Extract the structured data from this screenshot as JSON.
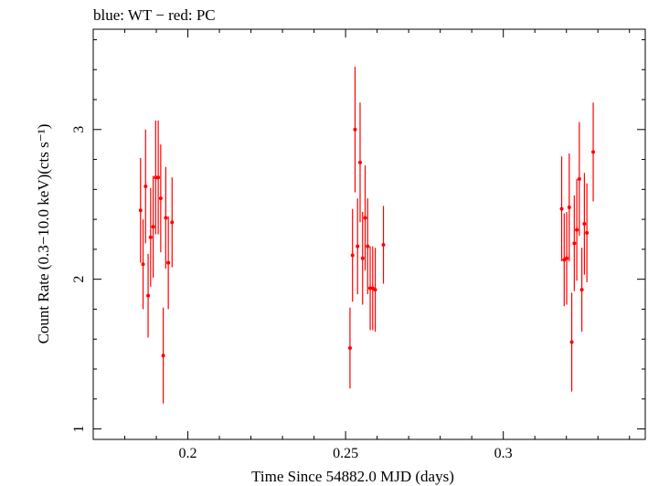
{
  "chart_data": {
    "type": "scatter",
    "title": "blue: WT − red: PC",
    "xlabel": "Time Since 54882.0 MJD (days)",
    "ylabel": "Count Rate (0.3−10.0 keV)(cts s⁻¹)",
    "xlim": [
      0.17,
      0.345
    ],
    "ylim": [
      0.93,
      3.67
    ],
    "x_ticks": [
      0.2,
      0.25,
      0.3
    ],
    "x_tick_labels": [
      "0.2",
      "0.25",
      "0.3"
    ],
    "y_ticks": [
      1,
      2,
      3
    ],
    "y_tick_labels": [
      "1",
      "2",
      "3"
    ],
    "grid": false,
    "series": [
      {
        "color": "#ff0000",
        "points": [
          {
            "x": 0.185,
            "y": 2.46,
            "err": 0.35
          },
          {
            "x": 0.1858,
            "y": 2.1,
            "err": 0.3
          },
          {
            "x": 0.1866,
            "y": 2.62,
            "err": 0.38
          },
          {
            "x": 0.1874,
            "y": 1.89,
            "err": 0.28
          },
          {
            "x": 0.1882,
            "y": 2.28,
            "err": 0.33
          },
          {
            "x": 0.189,
            "y": 2.35,
            "err": 0.34
          },
          {
            "x": 0.1898,
            "y": 2.68,
            "err": 0.38
          },
          {
            "x": 0.1906,
            "y": 2.68,
            "err": 0.38
          },
          {
            "x": 0.1914,
            "y": 2.54,
            "err": 0.36
          },
          {
            "x": 0.1922,
            "y": 1.49,
            "err": 0.32
          },
          {
            "x": 0.193,
            "y": 2.41,
            "err": 0.34
          },
          {
            "x": 0.1938,
            "y": 2.11,
            "err": 0.31
          },
          {
            "x": 0.195,
            "y": 2.38,
            "err": 0.3
          },
          {
            "x": 0.2514,
            "y": 1.54,
            "err": 0.27
          },
          {
            "x": 0.2522,
            "y": 2.16,
            "err": 0.31
          },
          {
            "x": 0.253,
            "y": 3.0,
            "err": 0.42
          },
          {
            "x": 0.2538,
            "y": 2.22,
            "err": 0.32
          },
          {
            "x": 0.2546,
            "y": 2.78,
            "err": 0.4
          },
          {
            "x": 0.2554,
            "y": 2.14,
            "err": 0.31
          },
          {
            "x": 0.2562,
            "y": 2.41,
            "err": 0.35
          },
          {
            "x": 0.257,
            "y": 2.22,
            "err": 0.32
          },
          {
            "x": 0.2578,
            "y": 1.94,
            "err": 0.28
          },
          {
            "x": 0.2586,
            "y": 1.94,
            "err": 0.28
          },
          {
            "x": 0.2594,
            "y": 1.93,
            "err": 0.28
          },
          {
            "x": 0.262,
            "y": 2.23,
            "err": 0.26
          },
          {
            "x": 0.3185,
            "y": 2.47,
            "err": 0.35
          },
          {
            "x": 0.3193,
            "y": 2.13,
            "err": 0.31
          },
          {
            "x": 0.3201,
            "y": 2.14,
            "err": 0.31
          },
          {
            "x": 0.3209,
            "y": 2.48,
            "err": 0.36
          },
          {
            "x": 0.3217,
            "y": 1.58,
            "err": 0.33
          },
          {
            "x": 0.3225,
            "y": 2.24,
            "err": 0.32
          },
          {
            "x": 0.3233,
            "y": 2.33,
            "err": 0.34
          },
          {
            "x": 0.3241,
            "y": 2.67,
            "err": 0.38
          },
          {
            "x": 0.3249,
            "y": 1.93,
            "err": 0.28
          },
          {
            "x": 0.3257,
            "y": 2.37,
            "err": 0.34
          },
          {
            "x": 0.3265,
            "y": 2.31,
            "err": 0.33
          },
          {
            "x": 0.3285,
            "y": 2.85,
            "err": 0.33
          }
        ]
      }
    ]
  }
}
